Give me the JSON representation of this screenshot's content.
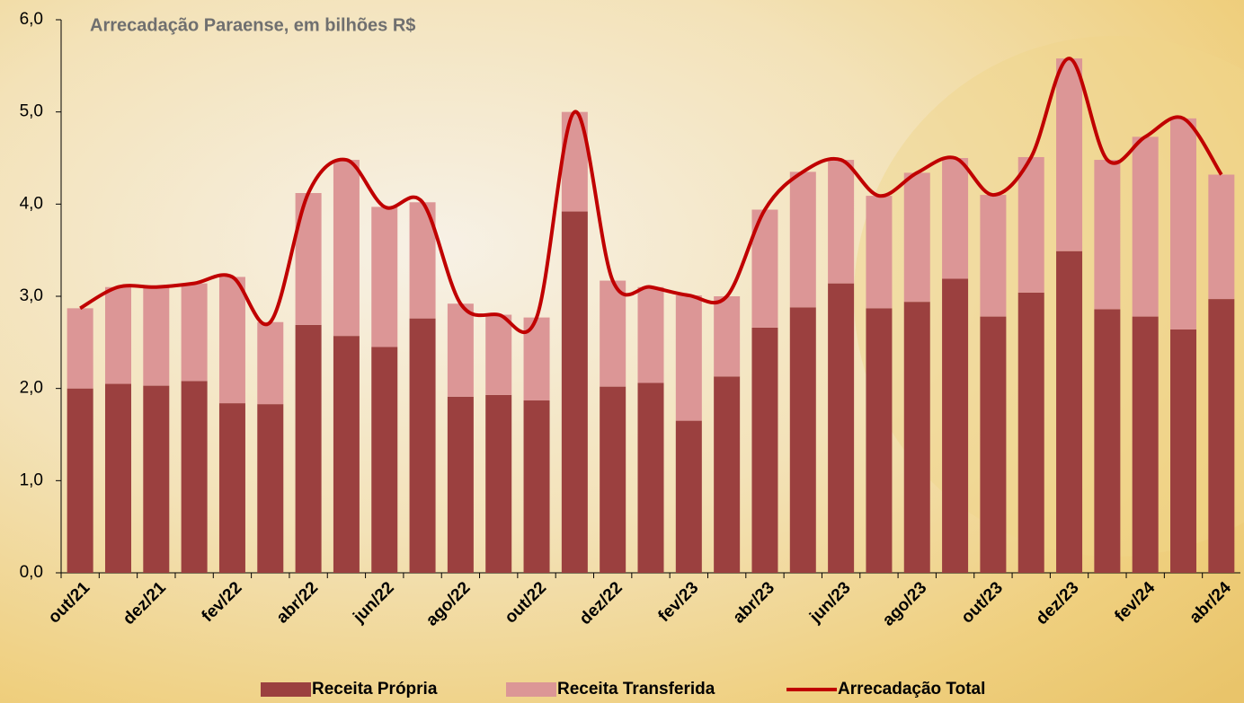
{
  "chart_data": {
    "type": "stacked-bar-line",
    "title": "Arrecadação Paraense, em bilhões R$",
    "categories": [
      "out/21",
      null,
      "dez/21",
      null,
      "fev/22",
      null,
      "abr/22",
      null,
      "jun/22",
      null,
      "ago/22",
      null,
      "out/22",
      null,
      "dez/22",
      null,
      "fev/23",
      null,
      "abr/23",
      null,
      "jun/23",
      null,
      "ago/23",
      null,
      "out/23",
      null,
      "dez/23",
      null,
      "fev/24",
      null,
      "abr/24"
    ],
    "series": [
      {
        "name": "Receita Própria",
        "type": "bar",
        "color": "#9b403f",
        "values": [
          2.0,
          2.05,
          2.03,
          2.08,
          1.84,
          1.83,
          2.69,
          2.57,
          2.45,
          2.76,
          1.91,
          1.93,
          1.87,
          3.92,
          2.02,
          2.06,
          1.65,
          2.13,
          2.66,
          2.88,
          3.14,
          2.87,
          2.94,
          3.19,
          2.78,
          3.04,
          3.49,
          2.86,
          2.78,
          2.64,
          2.97
        ]
      },
      {
        "name": "Receita Transferida",
        "type": "bar",
        "color": "#dc9696",
        "values": [
          0.87,
          1.05,
          1.07,
          1.06,
          1.37,
          0.89,
          1.43,
          1.91,
          1.52,
          1.26,
          1.01,
          0.87,
          0.9,
          1.08,
          1.15,
          1.04,
          1.36,
          0.87,
          1.28,
          1.47,
          1.34,
          1.22,
          1.4,
          1.31,
          1.32,
          1.47,
          2.09,
          1.62,
          1.95,
          2.29,
          1.35
        ]
      },
      {
        "name": "Arrecadação Total",
        "type": "line",
        "color": "#c00000",
        "values": [
          2.87,
          3.1,
          3.1,
          3.14,
          3.21,
          2.72,
          4.12,
          4.48,
          3.97,
          4.02,
          2.92,
          2.8,
          2.77,
          5.0,
          3.17,
          3.1,
          3.01,
          3.0,
          3.94,
          4.35,
          4.48,
          4.09,
          4.34,
          4.5,
          4.1,
          4.51,
          5.58,
          4.48,
          4.73,
          4.93,
          4.32
        ]
      }
    ],
    "ylim": [
      0,
      6
    ],
    "yticks": [
      {
        "value": 0,
        "label": "0,0"
      },
      {
        "value": 1,
        "label": "1,0"
      },
      {
        "value": 2,
        "label": "2,0"
      },
      {
        "value": 3,
        "label": "3,0"
      },
      {
        "value": 4,
        "label": "4,0"
      },
      {
        "value": 5,
        "label": "5,0"
      },
      {
        "value": 6,
        "label": "6,0"
      }
    ],
    "legend": "bottom"
  }
}
